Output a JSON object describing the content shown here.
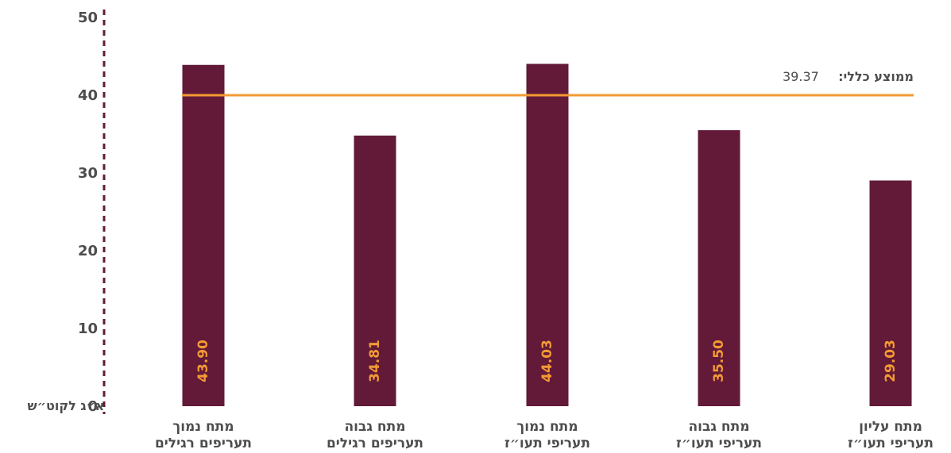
{
  "chart_data": {
    "type": "bar",
    "categories": [
      [
        "מתח נמוך",
        "תעריפים רגילים"
      ],
      [
        "מתח גבוה",
        "תעריפים רגילים"
      ],
      [
        "מתח נמוך",
        "תעריפי תעו״ז"
      ],
      [
        "מתח גבוה",
        "תעריפי תעו״ז"
      ],
      [
        "מתח עליון",
        "תעריפי תעו״ז"
      ]
    ],
    "values": [
      43.9,
      34.81,
      44.03,
      35.5,
      29.03
    ],
    "value_labels": [
      "43.90",
      "34.81",
      "44.03",
      "35.50",
      "29.03"
    ],
    "ylabel": "א״ג לקוט״ש",
    "ylim": [
      0,
      50
    ],
    "yticks": [
      0,
      10,
      20,
      30,
      40,
      50
    ],
    "average": {
      "label": "ממוצע כללי:",
      "value": 39.37,
      "value_text": "39.37"
    },
    "grid": false,
    "colors": {
      "bar": "#621a38",
      "average_line": "#f39a33",
      "value_text": "#f39a33",
      "axis": "#621a38",
      "text": "#4d4d4d"
    }
  }
}
